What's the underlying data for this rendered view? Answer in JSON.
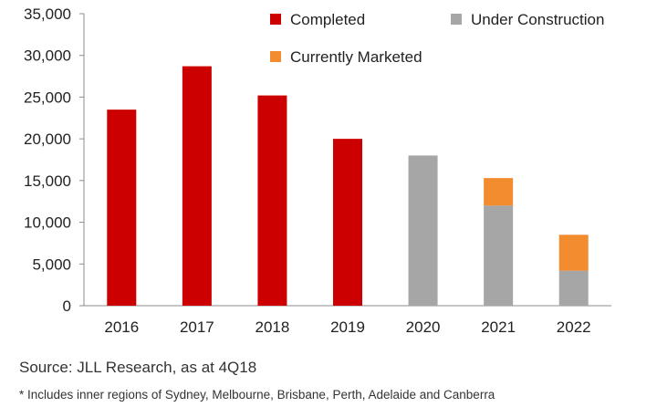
{
  "chart_data": {
    "type": "bar",
    "stacked": true,
    "categories": [
      "2016",
      "2017",
      "2018",
      "2019",
      "2020",
      "2021",
      "2022"
    ],
    "series": [
      {
        "name": "Completed",
        "color": "#cc0000",
        "values": [
          23500,
          28700,
          25200,
          20000,
          0,
          0,
          0
        ]
      },
      {
        "name": "Under Construction",
        "color": "#a6a6a6",
        "values": [
          0,
          0,
          0,
          0,
          18000,
          12000,
          4200
        ]
      },
      {
        "name": "Currently Marketed",
        "color": "#f38b2f",
        "values": [
          0,
          0,
          0,
          0,
          0,
          3300,
          4300
        ]
      }
    ],
    "ylim": [
      0,
      35000
    ],
    "yticks": [
      "0",
      "5,000",
      "10,000",
      "15,000",
      "20,000",
      "25,000",
      "30,000",
      "35,000"
    ],
    "grid": false,
    "legend_position": "top-right"
  },
  "source_text": "Source: JLL Research, as at 4Q18",
  "footnote_text": "* Includes inner regions of Sydney, Melbourne, Brisbane, Perth, Adelaide and Canberra"
}
